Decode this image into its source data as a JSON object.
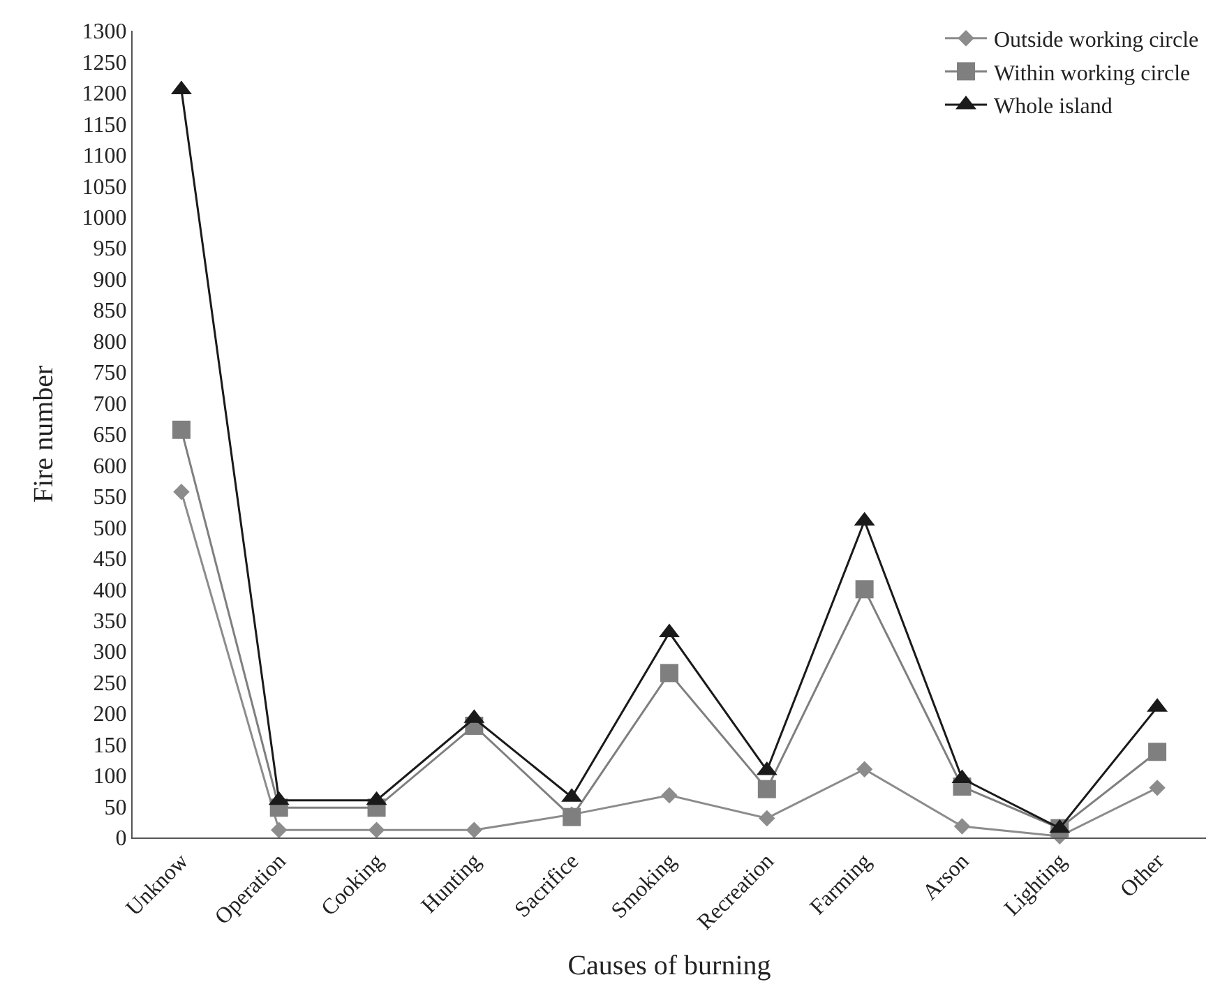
{
  "chart_data": {
    "type": "line",
    "xlabel": "Causes of burning",
    "ylabel": "Fire number",
    "categories": [
      "Unknow",
      "Operation",
      "Cooking",
      "Hunting",
      "Sacrifice",
      "Smoking",
      "Recreation",
      "Farming",
      "Arson",
      "Lighting",
      "Other"
    ],
    "series": [
      {
        "name": "Outside working circle",
        "color": "#8c8c8c",
        "marker": "diamond",
        "values": [
          557,
          12,
          12,
          12,
          37,
          68,
          31,
          110,
          18,
          2,
          80
        ]
      },
      {
        "name": "Within working circle",
        "color": "#7f7f7f",
        "marker": "square",
        "values": [
          657,
          48,
          48,
          180,
          33,
          265,
          78,
          400,
          82,
          15,
          138
        ]
      },
      {
        "name": "Whole island",
        "color": "#1a1a1a",
        "marker": "triangle",
        "values": [
          1205,
          60,
          60,
          192,
          65,
          330,
          108,
          510,
          95,
          15,
          210
        ]
      }
    ],
    "ylim": [
      0,
      1300
    ],
    "yticks": [
      0,
      50,
      100,
      150,
      200,
      250,
      300,
      350,
      400,
      450,
      500,
      550,
      600,
      650,
      700,
      750,
      800,
      850,
      900,
      950,
      1000,
      1050,
      1100,
      1150,
      1200,
      1250,
      1300
    ],
    "legend": "top right",
    "line_style": "solid"
  }
}
